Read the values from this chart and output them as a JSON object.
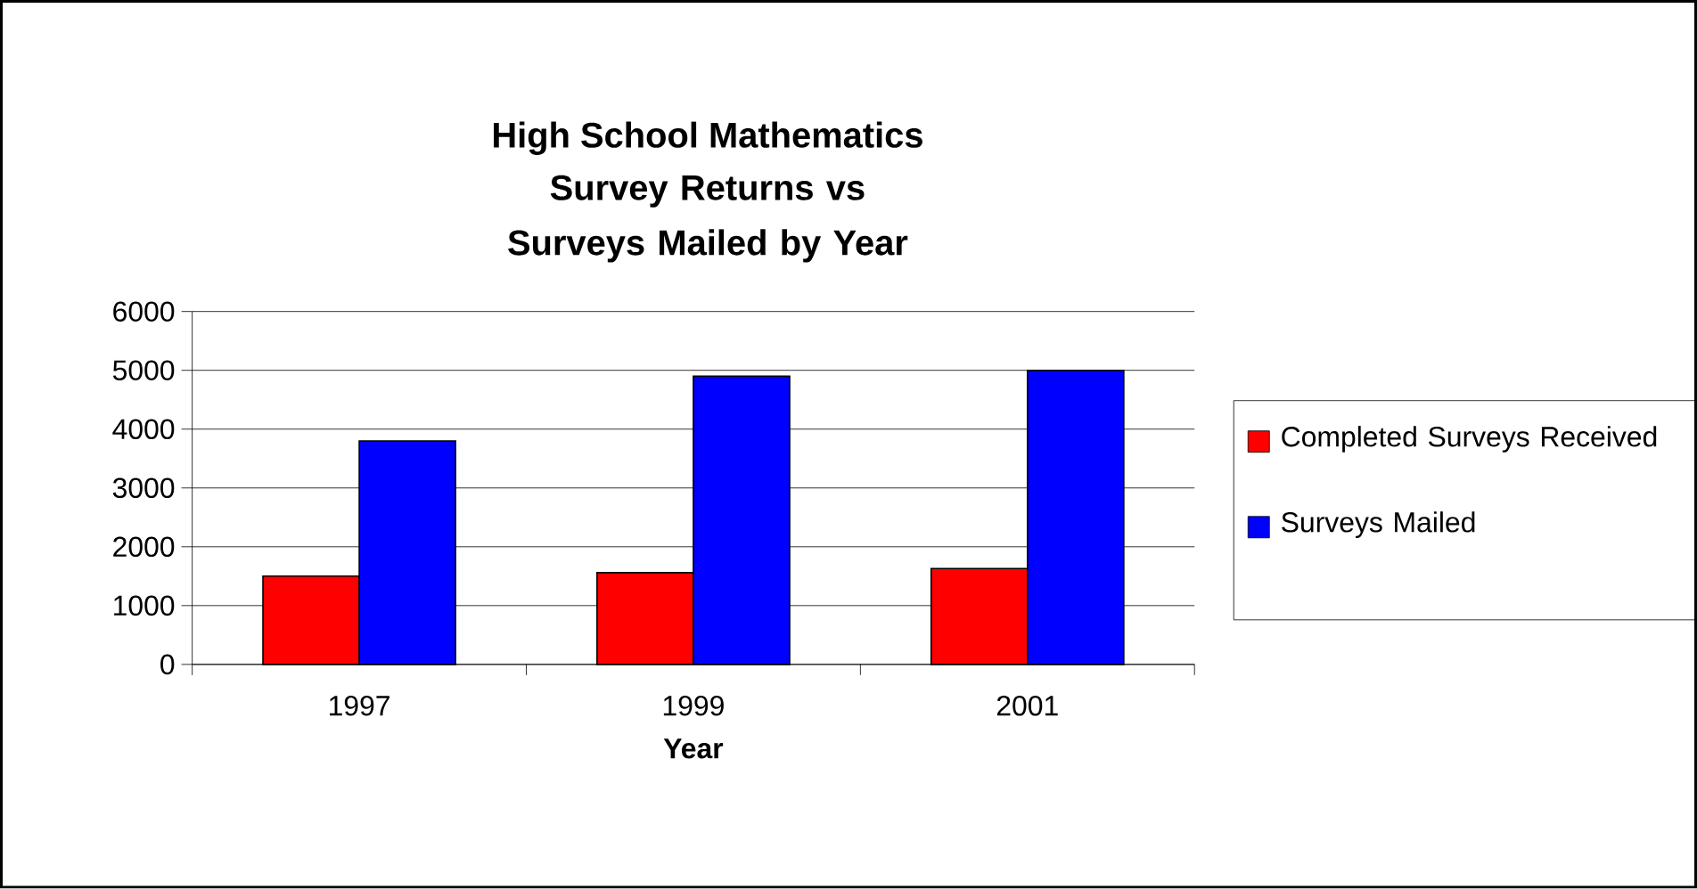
{
  "chart_data": {
    "type": "bar",
    "title": "High School Mathematics",
    "subtitle": "Survey Returns vs Surveys Mailed by Year",
    "xlabel": "Year",
    "categories": [
      "1997",
      "1999",
      "2001"
    ],
    "series": [
      {
        "name": "Completed Surveys Received",
        "color": "#ff0000",
        "values": [
          1500,
          1560,
          1630
        ]
      },
      {
        "name": "Surveys Mailed",
        "color": "#0000ff",
        "values": [
          3800,
          4900,
          5000
        ]
      }
    ],
    "ylim": [
      0,
      6000
    ],
    "yticks": [
      0,
      1000,
      2000,
      3000,
      4000,
      5000,
      6000
    ],
    "grid": "y",
    "legend": "right"
  }
}
